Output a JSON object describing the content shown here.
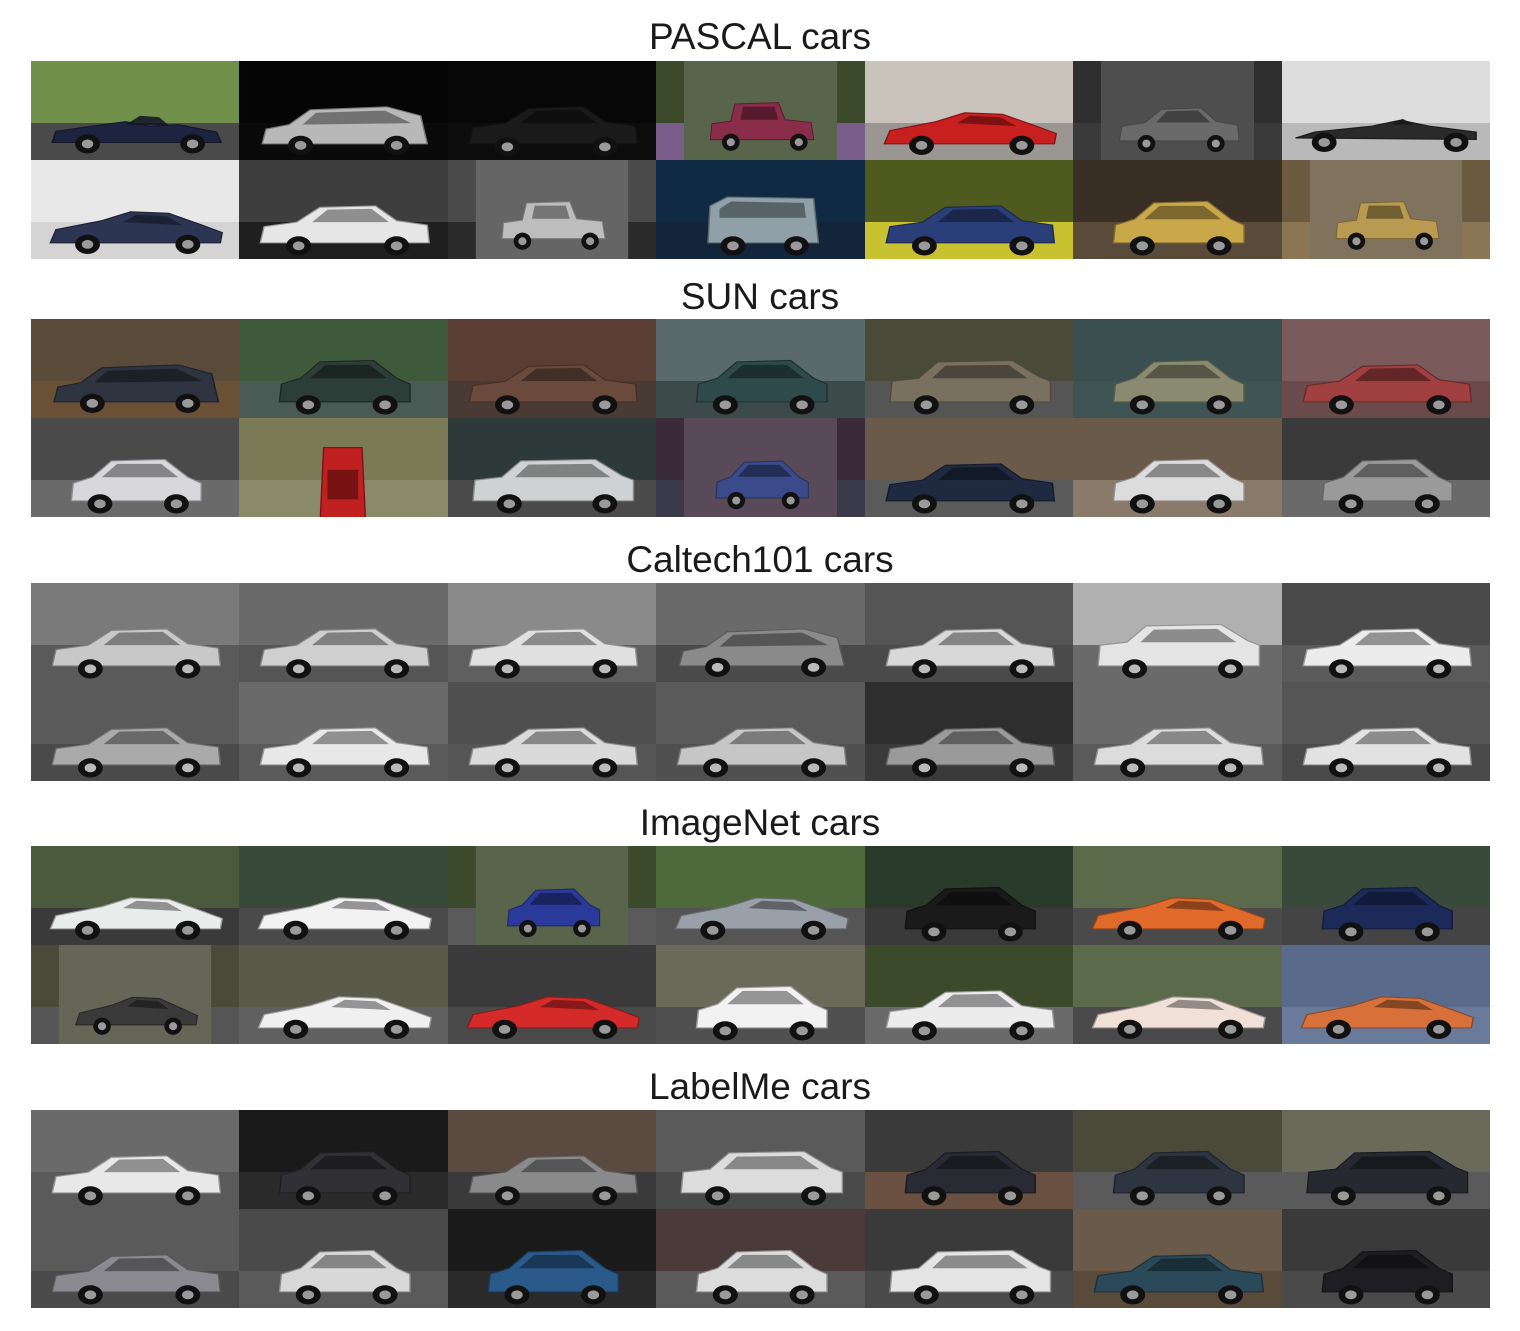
{
  "sections": [
    {
      "title": "PASCAL cars",
      "style": "mixed",
      "tiles": [
        {
          "bg": "#6f8f4a",
          "ground": "#4a4a4a",
          "car": "#1d2440",
          "kind": "roadster",
          "pad": 0
        },
        {
          "bg": "#050505",
          "ground": "#0a0a0a",
          "car": "#b8b8b8",
          "kind": "wagon",
          "pad": 0
        },
        {
          "bg": "#070707",
          "ground": "#0c0c0c",
          "car": "#1a1a1a",
          "kind": "sedan",
          "pad": 0
        },
        {
          "bg": "#3b4a2a",
          "ground": "#7a5d8a",
          "car": "#8a2d4a",
          "kind": "vintage",
          "pad": 1
        },
        {
          "bg": "#c9c3bb",
          "ground": "#9a9691",
          "car": "#c81f1f",
          "kind": "sport",
          "pad": 0
        },
        {
          "bg": "#2f2f2f",
          "ground": "#3a3a3a",
          "car": "#6a6a6a",
          "kind": "sedan",
          "pad": 1
        },
        {
          "bg": "#dcdcdc",
          "ground": "#b9b9b9",
          "car": "#2a2a2a",
          "kind": "f1",
          "pad": 0
        },
        {
          "bg": "#e8e8e8",
          "ground": "#d4d4d4",
          "car": "#2c3552",
          "kind": "sport",
          "pad": 0
        },
        {
          "bg": "#3e3e3e",
          "ground": "#1f1f1f",
          "car": "#e6e6e6",
          "kind": "sedan",
          "pad": 0
        },
        {
          "bg": "#4a4a4a",
          "ground": "#2a2a2a",
          "car": "#bdbdbd",
          "kind": "vintage",
          "pad": 1
        },
        {
          "bg": "#0f2a42",
          "ground": "#12253a",
          "car": "#8fa0a8",
          "kind": "van",
          "pad": 0
        },
        {
          "bg": "#4e5a1e",
          "ground": "#c8c231",
          "car": "#2a3f7a",
          "kind": "sedan",
          "pad": 0
        },
        {
          "bg": "#3a2f25",
          "ground": "#5a4a3a",
          "car": "#c9a84a",
          "kind": "hatch",
          "pad": 0
        },
        {
          "bg": "#6a5a40",
          "ground": "#8a7555",
          "car": "#b89a50",
          "kind": "vintage",
          "pad": 1
        }
      ]
    },
    {
      "title": "SUN cars",
      "style": "color",
      "tiles": [
        {
          "bg": "#5a4a3a",
          "ground": "#6a5034",
          "car": "#2e3540",
          "kind": "wagon",
          "pad": 0
        },
        {
          "bg": "#3e5a3a",
          "ground": "#4a5a55",
          "car": "#2d3d38",
          "kind": "hatch",
          "pad": 0
        },
        {
          "bg": "#5a3e34",
          "ground": "#4a3a34",
          "car": "#6a4a3c",
          "kind": "sedan",
          "pad": 0
        },
        {
          "bg": "#5a6a6a",
          "ground": "#3d4a4a",
          "car": "#2e4a4a",
          "kind": "hatch",
          "pad": 0
        },
        {
          "bg": "#4a4a3a",
          "ground": "#555555",
          "car": "#7a7060",
          "kind": "suv",
          "pad": 0
        },
        {
          "bg": "#3a5050",
          "ground": "#3f5555",
          "car": "#8a8a70",
          "kind": "hatch",
          "pad": 0
        },
        {
          "bg": "#7a5a5a",
          "ground": "#6a4a4a",
          "car": "#a04040",
          "kind": "sedan",
          "pad": 0
        },
        {
          "bg": "#4a4a4a",
          "ground": "#6a6a6a",
          "car": "#d8d8dc",
          "kind": "hatch",
          "pad": 0
        },
        {
          "bg": "#7a7a55",
          "ground": "#8a8a6a",
          "car": "#c02020",
          "kind": "topdown",
          "pad": 0
        },
        {
          "bg": "#2e3a3a",
          "ground": "#4a4a4a",
          "car": "#cfd2d2",
          "kind": "suv",
          "pad": 0
        },
        {
          "bg": "#3a2a3a",
          "ground": "#3a3a4a",
          "car": "#3a4a8a",
          "kind": "hatch",
          "pad": 1
        },
        {
          "bg": "#6a5a4a",
          "ground": "#5a5a5a",
          "car": "#1f2a40",
          "kind": "sedan",
          "pad": 0
        },
        {
          "bg": "#6a5a4a",
          "ground": "#8a7a6a",
          "car": "#dcdcdc",
          "kind": "hatch",
          "pad": 0
        },
        {
          "bg": "#3a3a3a",
          "ground": "#6a6a6a",
          "car": "#9a9a9a",
          "kind": "hatch",
          "pad": 0
        }
      ]
    },
    {
      "title": "Caltech101 cars",
      "style": "gray",
      "tiles": [
        {
          "bg": "#7a7a7a",
          "ground": "#5a5a5a",
          "car": "#c8c8c8",
          "kind": "sedan",
          "pad": 0
        },
        {
          "bg": "#6a6a6a",
          "ground": "#555555",
          "car": "#cfcfcf",
          "kind": "sedan",
          "pad": 0
        },
        {
          "bg": "#8a8a8a",
          "ground": "#5f5f5f",
          "car": "#e0e0e0",
          "kind": "sedan",
          "pad": 0
        },
        {
          "bg": "#6a6a6a",
          "ground": "#4a4a4a",
          "car": "#8a8a8a",
          "kind": "wagon",
          "pad": 0
        },
        {
          "bg": "#555555",
          "ground": "#4a4a4a",
          "car": "#d8d8d8",
          "kind": "sedan",
          "pad": 0
        },
        {
          "bg": "#b0b0b0",
          "ground": "#6a6a6a",
          "car": "#e4e4e4",
          "kind": "suv",
          "pad": 0
        },
        {
          "bg": "#4a4a4a",
          "ground": "#5a5a5a",
          "car": "#ececec",
          "kind": "sedan",
          "pad": 0
        },
        {
          "bg": "#5a5a5a",
          "ground": "#4a4a4a",
          "car": "#aaaaaa",
          "kind": "sedan",
          "pad": 0
        },
        {
          "bg": "#6a6a6a",
          "ground": "#5a5a5a",
          "car": "#e8e8e8",
          "kind": "sedan",
          "pad": 0
        },
        {
          "bg": "#4f4f4f",
          "ground": "#555555",
          "car": "#dadada",
          "kind": "sedan",
          "pad": 0
        },
        {
          "bg": "#5a5a5a",
          "ground": "#505050",
          "car": "#c6c6c6",
          "kind": "sedan",
          "pad": 0
        },
        {
          "bg": "#2e2e2e",
          "ground": "#3a3a3a",
          "car": "#9a9a9a",
          "kind": "sedan",
          "pad": 0
        },
        {
          "bg": "#6a6a6a",
          "ground": "#5a5a5a",
          "car": "#dcdcdc",
          "kind": "sedan",
          "pad": 0
        },
        {
          "bg": "#555555",
          "ground": "#4a4a4a",
          "car": "#e2e2e2",
          "kind": "sedan",
          "pad": 0
        }
      ]
    },
    {
      "title": "ImageNet cars",
      "style": "color",
      "tiles": [
        {
          "bg": "#4a5a3a",
          "ground": "#3a3a3a",
          "car": "#e8ecea",
          "kind": "sport",
          "pad": 0
        },
        {
          "bg": "#3a4a3a",
          "ground": "#4a4a4a",
          "car": "#f2f2f2",
          "kind": "sport",
          "pad": 0
        },
        {
          "bg": "#3a4a2a",
          "ground": "#5a5a5a",
          "car": "#2a3a9a",
          "kind": "hatch",
          "pad": 1
        },
        {
          "bg": "#4f6a3a",
          "ground": "#555555",
          "car": "#9aa0aa",
          "kind": "sport",
          "pad": 0
        },
        {
          "bg": "#2a3a2a",
          "ground": "#3a3a3a",
          "car": "#1a1a1a",
          "kind": "hatch",
          "pad": 0
        },
        {
          "bg": "#5a6a4a",
          "ground": "#4a4a4a",
          "car": "#e06a2a",
          "kind": "sport",
          "pad": 0
        },
        {
          "bg": "#3a4a3a",
          "ground": "#444444",
          "car": "#1c2a5a",
          "kind": "hatch",
          "pad": 0
        },
        {
          "bg": "#4a4a3a",
          "ground": "#555555",
          "car": "#3a3a3a",
          "kind": "sport",
          "pad": 1
        },
        {
          "bg": "#5a5a4a",
          "ground": "#606060",
          "car": "#f0f0f0",
          "kind": "sport",
          "pad": 0
        },
        {
          "bg": "#3a3a3a",
          "ground": "#4a4a4a",
          "car": "#d42a2a",
          "kind": "sport",
          "pad": 0
        },
        {
          "bg": "#6a6a5a",
          "ground": "#505050",
          "car": "#f2f2f2",
          "kind": "hatch",
          "pad": 0
        },
        {
          "bg": "#3a4a2a",
          "ground": "#6a6a6a",
          "car": "#ececec",
          "kind": "sedan",
          "pad": 0
        },
        {
          "bg": "#5a6a4a",
          "ground": "#4a4a4a",
          "car": "#f0e0d8",
          "kind": "sport",
          "pad": 0
        },
        {
          "bg": "#5a6a8a",
          "ground": "#6a7a9a",
          "car": "#d8703a",
          "kind": "sport",
          "pad": 0
        }
      ]
    },
    {
      "title": "LabelMe cars",
      "style": "color",
      "tiles": [
        {
          "bg": "#6a6a6a",
          "ground": "#5a5a5a",
          "car": "#e8e8e8",
          "kind": "sedan",
          "pad": 0
        },
        {
          "bg": "#1a1a1a",
          "ground": "#2a2a2a",
          "car": "#303035",
          "kind": "hatch",
          "pad": 0
        },
        {
          "bg": "#5a4a40",
          "ground": "#3a3a3a",
          "car": "#8a8a8a",
          "kind": "sedan",
          "pad": 0
        },
        {
          "bg": "#5a5a5a",
          "ground": "#4a4a4a",
          "car": "#dcdcdc",
          "kind": "suv",
          "pad": 0
        },
        {
          "bg": "#3a3a3a",
          "ground": "#6a5040",
          "car": "#2a2a35",
          "kind": "hatch",
          "pad": 0
        },
        {
          "bg": "#4a4a3a",
          "ground": "#5a5a5a",
          "car": "#2e3540",
          "kind": "hatch",
          "pad": 0
        },
        {
          "bg": "#6a6a5a",
          "ground": "#5a5a5a",
          "car": "#262a30",
          "kind": "suv",
          "pad": 0
        },
        {
          "bg": "#5a5a5a",
          "ground": "#4a4a4a",
          "car": "#8a8a90",
          "kind": "sedan",
          "pad": 0
        },
        {
          "bg": "#4a4a4a",
          "ground": "#5a5a5a",
          "car": "#d8d8d8",
          "kind": "hatch",
          "pad": 0
        },
        {
          "bg": "#1a1a1a",
          "ground": "#2a2a2a",
          "car": "#2a5a8a",
          "kind": "hatch",
          "pad": 0
        },
        {
          "bg": "#4a3a3a",
          "ground": "#5a5a5a",
          "car": "#dcdcdc",
          "kind": "hatch",
          "pad": 0
        },
        {
          "bg": "#3a3a3a",
          "ground": "#4a4a4a",
          "car": "#e4e4e4",
          "kind": "suv",
          "pad": 0
        },
        {
          "bg": "#6a5a4a",
          "ground": "#5a4a3a",
          "car": "#2a4a5a",
          "kind": "sedan",
          "pad": 0
        },
        {
          "bg": "#3a3a3a",
          "ground": "#4a4a4a",
          "car": "#1e1e22",
          "kind": "hatch",
          "pad": 0
        }
      ]
    }
  ]
}
